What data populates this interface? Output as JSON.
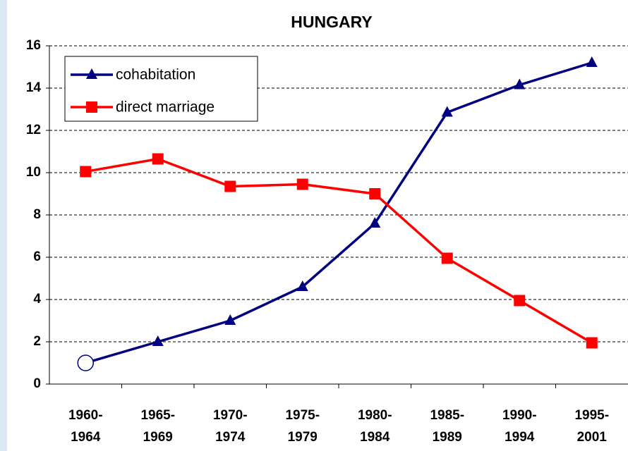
{
  "chart_data": {
    "type": "line",
    "title": "HUNGARY",
    "categories": [
      "1960-\n1964",
      "1965-\n1969",
      "1970-\n1974",
      "1975-\n1979",
      "1980-\n1984",
      "1985-\n1989",
      "1990-\n1994",
      "1995-\n2001"
    ],
    "series": [
      {
        "name": "cohabitation",
        "color": "#000080",
        "marker": "triangle",
        "marker_overrides": {
          "0": "circle-open"
        },
        "values": [
          1.0,
          2.0,
          3.0,
          4.6,
          7.6,
          12.85,
          14.15,
          15.2
        ]
      },
      {
        "name": "direct marriage",
        "color": "#ff0000",
        "marker": "square",
        "values": [
          10.05,
          10.65,
          9.35,
          9.45,
          9.0,
          5.95,
          3.95,
          1.95
        ]
      }
    ],
    "ylim": [
      0,
      16
    ],
    "yticks": [
      0,
      2,
      4,
      6,
      8,
      10,
      12,
      14,
      16
    ],
    "grid": true,
    "legend": "upper left"
  }
}
